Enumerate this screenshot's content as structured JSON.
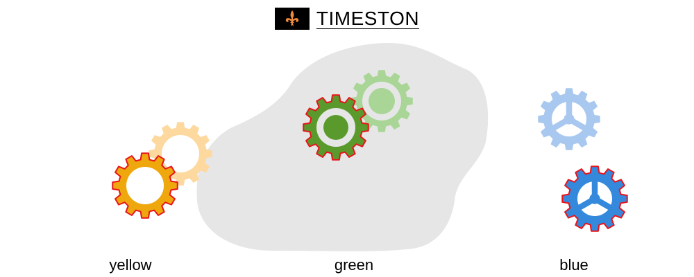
{
  "header": {
    "title": "TIMESTON",
    "logo_icon": "fleur-de-lis-icon"
  },
  "colors": {
    "logo_background": "#000000",
    "logo_symbol": "#f08a3c",
    "selection_outline": "#e8141a",
    "drop_zone": "#e6e6e6",
    "yellow_solid": "#eea70c",
    "yellow_faded": "#fdd9a0",
    "green_solid": "#5a9a2c",
    "green_faded": "#a9d597",
    "blue_solid": "#3489dc",
    "blue_faded": "#a9c8ef"
  },
  "groups": {
    "yellow": {
      "label": "yellow",
      "icon": "ring-gear-icon"
    },
    "green": {
      "label": "green",
      "icon": "ring-gear-icon"
    },
    "blue": {
      "label": "blue",
      "icon": "spoked-gear-icon"
    }
  }
}
